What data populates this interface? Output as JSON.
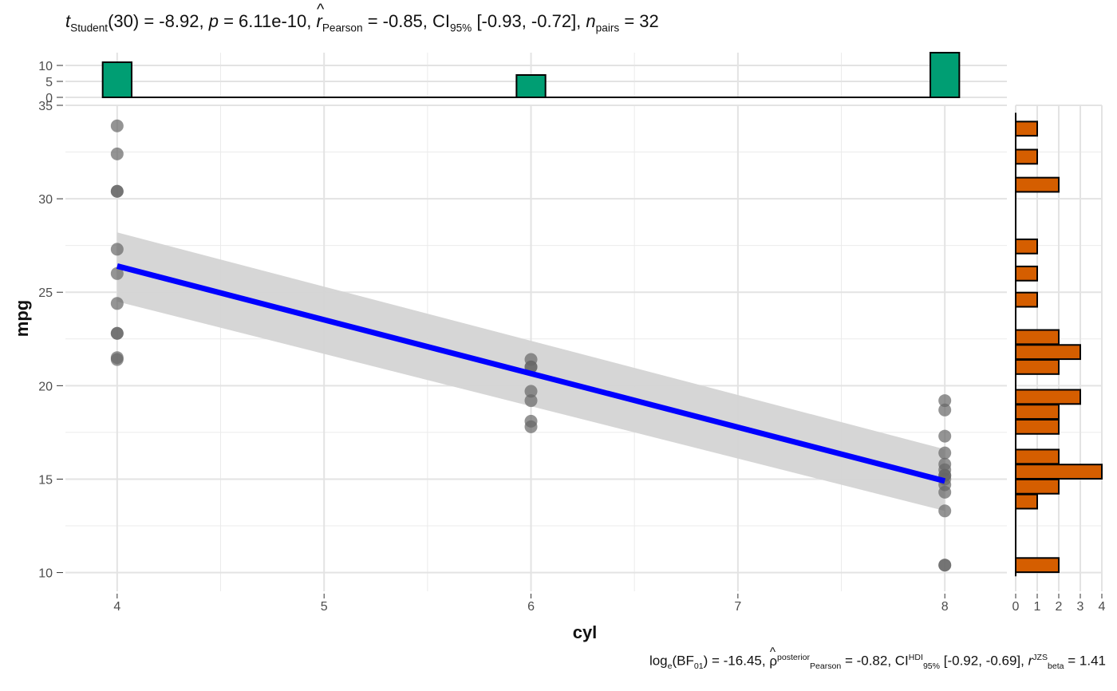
{
  "title": {
    "t_label": "t",
    "t_sub": "Student",
    "df": "(30) = -8.92,",
    "p_label": "p",
    "p_value": "= 6.11e-10,",
    "r_label": "r",
    "r_sub": "Pearson",
    "r_value": "= -0.85, CI",
    "ci_sub": "95%",
    "ci_value": "[-0.93, -0.72],",
    "n_label": "n",
    "n_sub": "pairs",
    "n_value": "= 32"
  },
  "subtitle": {
    "log_label": "log",
    "log_sub": "e",
    "bf_text": "(BF",
    "bf_sub": "01",
    "bf_value": ") = -16.45,",
    "rho_label": "ρ",
    "rho_sup": "posterior",
    "rho_sub": "Pearson",
    "rho_value": "= -0.82, CI",
    "ci_sup": "HDI",
    "ci_sub": "95%",
    "ci_value": "[-0.92, -0.69],",
    "r_label": "r",
    "r_sup": "JZS",
    "r_sub": "beta",
    "r_value": "= 1.41"
  },
  "chart_data": {
    "type": "scatter",
    "xlabel": "cyl",
    "ylabel": "mpg",
    "xlim": [
      3.75,
      8.3
    ],
    "ylim": [
      9.0,
      35.0
    ],
    "x_ticks": [
      "4",
      "5",
      "6",
      "7",
      "8"
    ],
    "y_ticks": [
      "10",
      "15",
      "20",
      "25",
      "30",
      "35"
    ],
    "points": [
      {
        "x": 4,
        "y": 33.9
      },
      {
        "x": 4,
        "y": 32.4
      },
      {
        "x": 4,
        "y": 30.4
      },
      {
        "x": 4,
        "y": 30.4
      },
      {
        "x": 4,
        "y": 27.3
      },
      {
        "x": 4,
        "y": 26.0
      },
      {
        "x": 4,
        "y": 24.4
      },
      {
        "x": 4,
        "y": 22.8
      },
      {
        "x": 4,
        "y": 22.8
      },
      {
        "x": 4,
        "y": 21.5
      },
      {
        "x": 4,
        "y": 21.4
      },
      {
        "x": 6,
        "y": 21.4
      },
      {
        "x": 6,
        "y": 21.0
      },
      {
        "x": 6,
        "y": 21.0
      },
      {
        "x": 6,
        "y": 19.7
      },
      {
        "x": 6,
        "y": 19.2
      },
      {
        "x": 6,
        "y": 18.1
      },
      {
        "x": 6,
        "y": 17.8
      },
      {
        "x": 8,
        "y": 19.2
      },
      {
        "x": 8,
        "y": 18.7
      },
      {
        "x": 8,
        "y": 17.3
      },
      {
        "x": 8,
        "y": 16.4
      },
      {
        "x": 8,
        "y": 15.8
      },
      {
        "x": 8,
        "y": 15.5
      },
      {
        "x": 8,
        "y": 15.2
      },
      {
        "x": 8,
        "y": 15.2
      },
      {
        "x": 8,
        "y": 15.0
      },
      {
        "x": 8,
        "y": 14.7
      },
      {
        "x": 8,
        "y": 14.3
      },
      {
        "x": 8,
        "y": 13.3
      },
      {
        "x": 8,
        "y": 10.4
      },
      {
        "x": 8,
        "y": 10.4
      }
    ],
    "point_color": "#666666",
    "regression": {
      "x": [
        4,
        8
      ],
      "y": [
        26.4,
        14.9
      ],
      "ci_lower": [
        24.5,
        13.3
      ],
      "ci_upper": [
        28.2,
        16.6
      ],
      "color": "#0000ff",
      "band_color": "#d4d4d4"
    },
    "top_histogram": {
      "x_centers": [
        4,
        6,
        8
      ],
      "counts": [
        11,
        7,
        14
      ],
      "y_ticks": [
        "0",
        "5",
        "10"
      ],
      "ylim": [
        0,
        14
      ],
      "color": "#009e73"
    },
    "right_histogram": {
      "y_bins": [
        {
          "y": 33.75,
          "count": 1
        },
        {
          "y": 32.25,
          "count": 1
        },
        {
          "y": 30.75,
          "count": 2
        },
        {
          "y": 27.45,
          "count": 1
        },
        {
          "y": 26.0,
          "count": 1
        },
        {
          "y": 24.6,
          "count": 1
        },
        {
          "y": 22.6,
          "count": 2
        },
        {
          "y": 21.8,
          "count": 3
        },
        {
          "y": 21.0,
          "count": 2
        },
        {
          "y": 19.4,
          "count": 3
        },
        {
          "y": 18.6,
          "count": 2
        },
        {
          "y": 17.8,
          "count": 2
        },
        {
          "y": 16.2,
          "count": 2
        },
        {
          "y": 15.4,
          "count": 4
        },
        {
          "y": 14.6,
          "count": 2
        },
        {
          "y": 13.8,
          "count": 1
        },
        {
          "y": 10.4,
          "count": 2
        }
      ],
      "x_ticks": [
        "0",
        "1",
        "2",
        "3",
        "4"
      ],
      "xlim": [
        0,
        4
      ],
      "color": "#d55e00"
    }
  }
}
